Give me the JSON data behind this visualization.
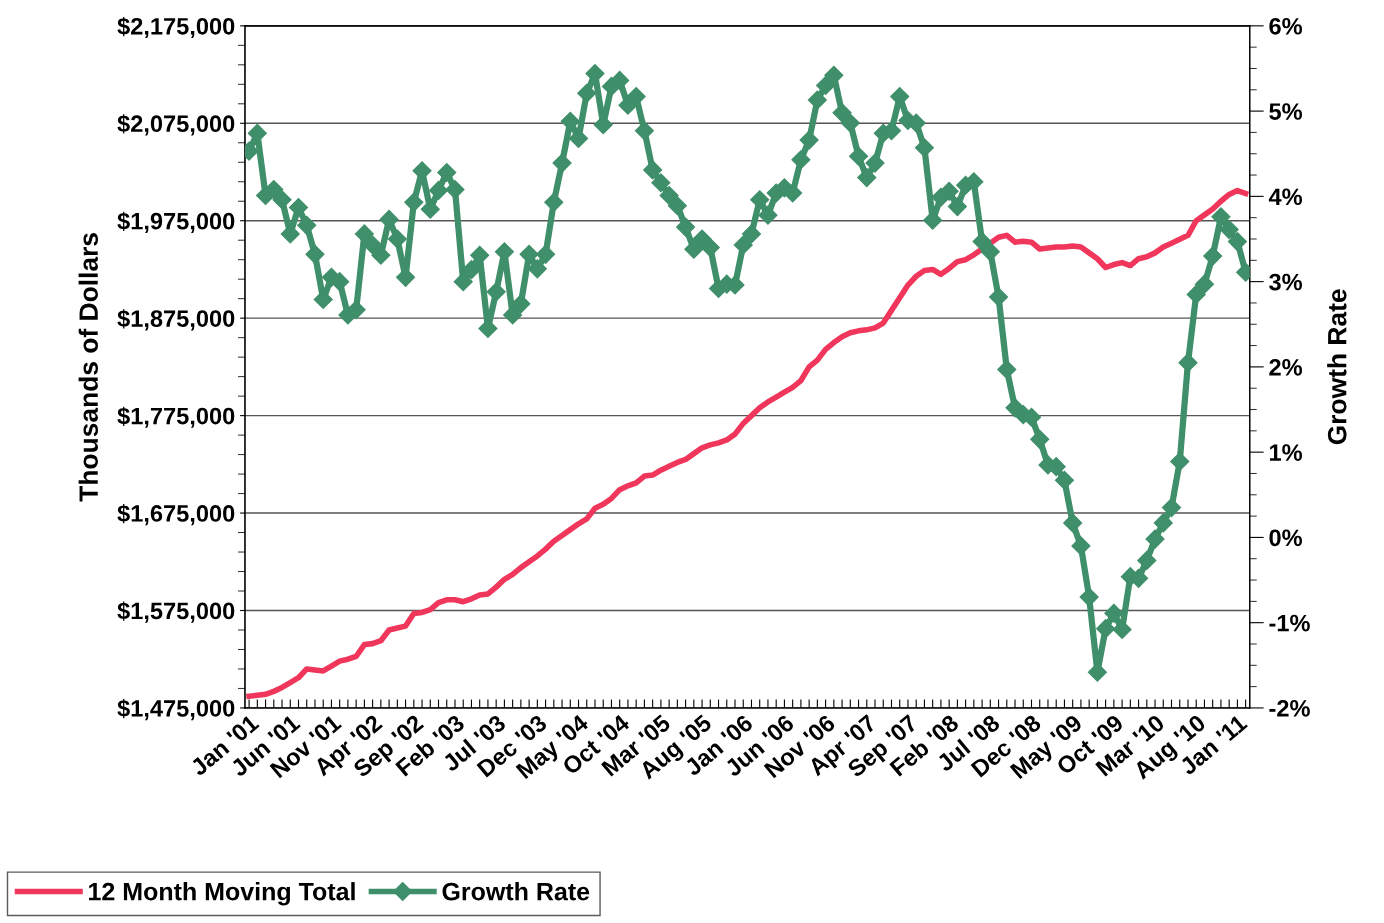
{
  "chart_data": {
    "type": "line",
    "categories": [
      "Jan '01",
      null,
      null,
      null,
      null,
      "Jun '01",
      null,
      null,
      null,
      null,
      "Nov '01",
      null,
      null,
      null,
      null,
      "Apr '02",
      null,
      null,
      null,
      null,
      "Sep '02",
      null,
      null,
      null,
      null,
      "Feb '03",
      null,
      null,
      null,
      null,
      "Jul '03",
      null,
      null,
      null,
      null,
      "Dec '03",
      null,
      null,
      null,
      null,
      "May '04",
      null,
      null,
      null,
      null,
      "Oct '04",
      null,
      null,
      null,
      null,
      "Mar '05",
      null,
      null,
      null,
      null,
      "Aug '05",
      null,
      null,
      null,
      null,
      "Jan '06",
      null,
      null,
      null,
      null,
      "Jun '06",
      null,
      null,
      null,
      null,
      "Nov '06",
      null,
      null,
      null,
      null,
      "Apr '07",
      null,
      null,
      null,
      null,
      "Sep '07",
      null,
      null,
      null,
      null,
      "Feb '08",
      null,
      null,
      null,
      null,
      "Jul '08",
      null,
      null,
      null,
      null,
      "Dec '08",
      null,
      null,
      null,
      null,
      "May '09",
      null,
      null,
      null,
      null,
      "Oct '09",
      null,
      null,
      null,
      null,
      "Mar '10",
      null,
      null,
      null,
      null,
      "Aug '10",
      null,
      null,
      null,
      null,
      "Jan '11",
      null
    ],
    "series": [
      {
        "name": "12 Month Moving Total",
        "color": "#f0365a",
        "marker": "none",
        "values": [
          1487000,
          1488000,
          1489000,
          1492000,
          1496000,
          1501000,
          1506000,
          1515000,
          1514000,
          1513000,
          1518000,
          1523000,
          1525000,
          1528000,
          1540000,
          1541000,
          1544000,
          1555000,
          1557000,
          1559000,
          1572000,
          1573000,
          1576000,
          1583000,
          1586000,
          1586000,
          1584000,
          1587000,
          1591000,
          1592000,
          1599000,
          1607000,
          1612000,
          1619000,
          1625000,
          1631000,
          1638000,
          1646000,
          1652000,
          1658000,
          1664000,
          1669000,
          1680000,
          1684000,
          1690000,
          1699000,
          1703000,
          1706000,
          1713000,
          1714000,
          1719000,
          1723000,
          1727000,
          1730000,
          1736000,
          1742000,
          1745000,
          1747000,
          1750000,
          1756000,
          1767000,
          1775000,
          1783000,
          1789000,
          1794000,
          1799000,
          1804000,
          1811000,
          1825000,
          1832000,
          1843000,
          1850000,
          1856000,
          1860000,
          1862000,
          1863000,
          1865000,
          1870000,
          1883000,
          1896000,
          1909000,
          1918000,
          1924000,
          1925000,
          1920000,
          1926000,
          1933000,
          1935000,
          1940000,
          1946000,
          1952000,
          1958000,
          1960000,
          1953000,
          1954000,
          1953000,
          1946000,
          1947000,
          1948000,
          1948000,
          1949000,
          1948000,
          1942000,
          1936000,
          1927000,
          1930000,
          1932000,
          1929000,
          1936000,
          1938000,
          1942000,
          1948000,
          1952000,
          1956000,
          1960000,
          1975000,
          1981000,
          1987000,
          1995000,
          2002000,
          2006000,
          2003000
        ]
      },
      {
        "name": "Growth Rate",
        "color": "#3f8f6a",
        "marker": "diamond",
        "axis": "y2",
        "values": [
          4.53,
          4.74,
          4.01,
          4.08,
          3.96,
          3.56,
          3.87,
          3.66,
          3.32,
          2.79,
          3.05,
          3.0,
          2.61,
          2.67,
          3.56,
          3.43,
          3.31,
          3.73,
          3.5,
          3.05,
          3.93,
          4.3,
          3.85,
          4.07,
          4.28,
          4.08,
          3.0,
          3.14,
          3.31,
          2.45,
          2.88,
          3.35,
          2.61,
          2.74,
          3.32,
          3.15,
          3.32,
          3.93,
          4.39,
          4.88,
          4.68,
          5.21,
          5.44,
          4.84,
          5.29,
          5.36,
          5.07,
          5.17,
          4.77,
          4.31,
          4.16,
          4.01,
          3.89,
          3.64,
          3.38,
          3.5,
          3.4,
          2.92,
          2.97,
          2.96,
          3.43,
          3.56,
          3.96,
          3.78,
          4.04,
          4.1,
          4.04,
          4.43,
          4.66,
          5.13,
          5.3,
          5.42,
          4.98,
          4.86,
          4.47,
          4.22,
          4.39,
          4.74,
          4.77,
          5.17,
          4.89,
          4.86,
          4.57,
          3.72,
          3.99,
          4.06,
          3.88,
          4.13,
          4.17,
          3.47,
          3.35,
          2.82,
          1.97,
          1.52,
          1.44,
          1.41,
          1.15,
          0.85,
          0.83,
          0.67,
          0.17,
          -0.1,
          -0.7,
          -1.58,
          -1.07,
          -0.89,
          -1.08,
          -0.46,
          -0.48,
          -0.27,
          -0.02,
          0.17,
          0.35,
          0.89,
          2.05,
          2.85,
          2.97,
          3.3,
          3.76,
          3.61,
          3.47,
          3.11
        ]
      }
    ],
    "ylabel": "Thousands of Dollars",
    "y2label": "Growth Rate",
    "ylim": [
      1475000,
      2175000
    ],
    "yticks": [
      {
        "value": 1475000,
        "label": "$1,475,000"
      },
      {
        "value": 1575000,
        "label": "$1,575,000"
      },
      {
        "value": 1675000,
        "label": "$1,675,000"
      },
      {
        "value": 1775000,
        "label": "$1,775,000"
      },
      {
        "value": 1875000,
        "label": "$1,875,000"
      },
      {
        "value": 1975000,
        "label": "$1,975,000"
      },
      {
        "value": 2075000,
        "label": "$2,075,000"
      },
      {
        "value": 2175000,
        "label": "$2,175,000"
      }
    ],
    "y2lim": [
      -2,
      6
    ],
    "y2ticks": [
      {
        "value": -2,
        "label": "-2%"
      },
      {
        "value": -1,
        "label": "-1%"
      },
      {
        "value": 0,
        "label": "0%"
      },
      {
        "value": 1,
        "label": "1%"
      },
      {
        "value": 2,
        "label": "2%"
      },
      {
        "value": 3,
        "label": "3%"
      },
      {
        "value": 4,
        "label": "4%"
      },
      {
        "value": 5,
        "label": "5%"
      },
      {
        "value": 6,
        "label": "6%"
      }
    ],
    "grid": "y",
    "legend": "bottom left",
    "line_style": "solid"
  }
}
